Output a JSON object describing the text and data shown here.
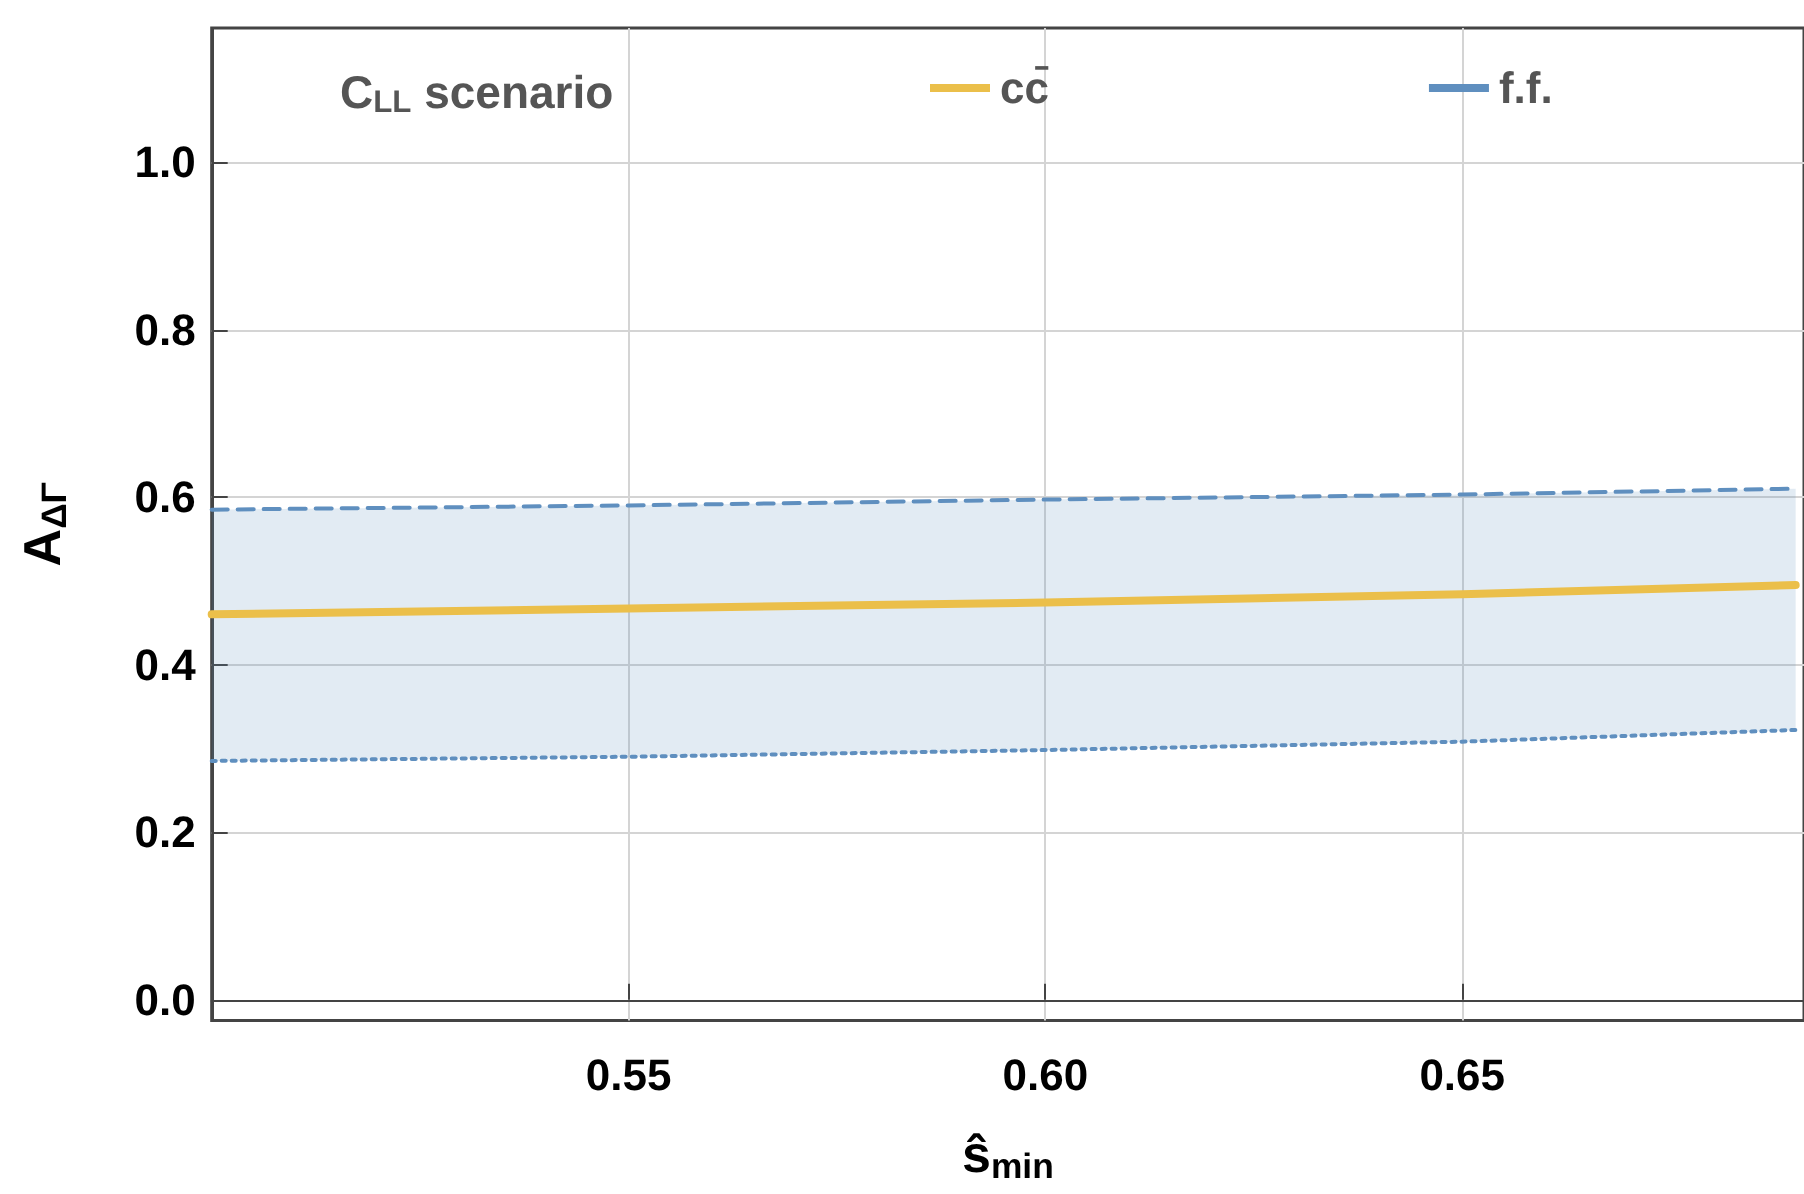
{
  "chart_data": {
    "type": "line",
    "xlabel": "ŝ$_{min}$",
    "ylabel": "A$_{ΔΓ}$",
    "legend_title": "C$_{LL}$ scenario",
    "x": [
      0.5,
      0.55,
      0.6,
      0.65,
      0.69
    ],
    "series": [
      {
        "name": "cc̄",
        "color": "#ebbf4a",
        "values": [
          0.46,
          0.467,
          0.474,
          0.484,
          0.495
        ]
      },
      {
        "name": "f.f.",
        "color": "#5f8fbf",
        "line_style": "dashed",
        "values": [
          0.585,
          0.59,
          0.597,
          0.603,
          0.61
        ],
        "lower": [
          0.285,
          0.29,
          0.298,
          0.308,
          0.322
        ],
        "upper": [
          0.585,
          0.59,
          0.597,
          0.603,
          0.61
        ]
      },
      {
        "color": "#5f8fbf",
        "line_style": "dotted",
        "values": [
          0.285,
          0.29,
          0.298,
          0.308,
          0.322
        ]
      }
    ],
    "xlim": [
      0.5,
      0.691
    ],
    "ylim": [
      -0.025,
      1.16
    ],
    "xticks": [
      {
        "value": 0.55,
        "label": "0.55"
      },
      {
        "value": 0.6,
        "label": "0.60"
      },
      {
        "value": 0.65,
        "label": "0.65"
      }
    ],
    "yticks": [
      {
        "value": 0,
        "label": "0.0"
      },
      {
        "value": 0.2,
        "label": "0.2"
      },
      {
        "value": 0.4,
        "label": "0.4"
      },
      {
        "value": 0.6,
        "label": "0.6"
      },
      {
        "value": 0.8,
        "label": "0.8"
      },
      {
        "value": 1.0,
        "label": "1.0"
      }
    ],
    "grid": true,
    "legend": "top",
    "marker": "none",
    "line_style": "solid"
  }
}
